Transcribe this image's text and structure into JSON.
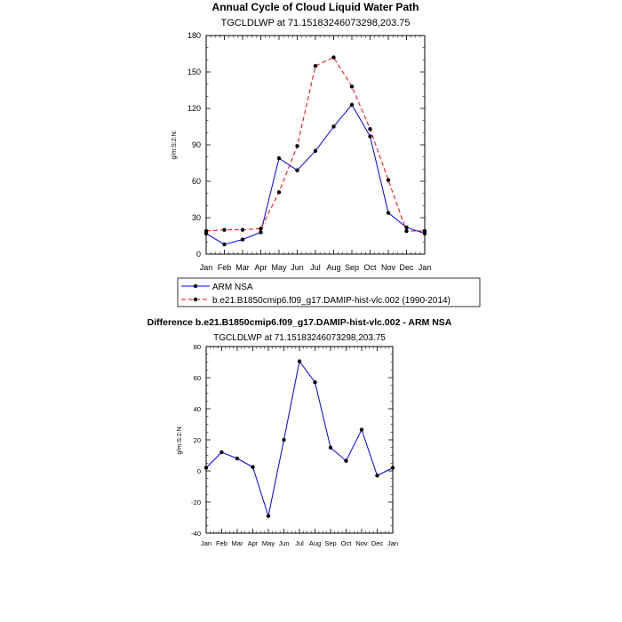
{
  "chart_data": [
    {
      "type": "line",
      "title": "Annual Cycle of Cloud Liquid Water Path",
      "subtitle": "TGCLDLWP at 71.15183246073298,203.75",
      "ylabel": "g/m:S:2:N:",
      "categories": [
        "Jan",
        "Feb",
        "Mar",
        "Apr",
        "May",
        "Jun",
        "Jul",
        "Aug",
        "Sep",
        "Oct",
        "Nov",
        "Dec",
        "Jan"
      ],
      "ylim": [
        0,
        180
      ],
      "yticks": [
        "0",
        "30",
        "60",
        "90",
        "120",
        "150",
        "180"
      ],
      "series": [
        {
          "name": "ARM NSA",
          "color": "#0000ff",
          "dash": "solid",
          "values": [
            17,
            8,
            12,
            18,
            79,
            69,
            85,
            105,
            123,
            97,
            34,
            22,
            17
          ]
        },
        {
          "name": "b.e21.B1850cmip6.f09_g17.DAMIP-hist-vlc.002 (1990-2014)",
          "color": "#ff0000",
          "dash": "dashed",
          "values": [
            19,
            20,
            20,
            21,
            51,
            89,
            155,
            162,
            138,
            103,
            61,
            19,
            19
          ]
        }
      ],
      "legend": "bottom"
    },
    {
      "type": "line",
      "title": "Difference b.e21.B1850cmip6.f09_g17.DAMIP-hist-vlc.002 - ARM NSA",
      "subtitle": "TGCLDLWP at 71.15183246073298,203.75",
      "ylabel": "g/m:S:2:N:",
      "categories": [
        "Jan",
        "Feb",
        "Mar",
        "Apr",
        "May",
        "Jun",
        "Jul",
        "Aug",
        "Sep",
        "Oct",
        "Nov",
        "Dec",
        "Jan"
      ],
      "ylim": [
        -40,
        80
      ],
      "yticks": [
        "-40",
        "-20",
        "0",
        "20",
        "40",
        "60",
        "80"
      ],
      "series": [
        {
          "color": "#0000ff",
          "dash": "solid",
          "values": [
            2,
            12,
            8,
            2.5,
            -29,
            20,
            70.5,
            57,
            15,
            6.5,
            26.5,
            -3,
            2
          ]
        }
      ]
    }
  ]
}
